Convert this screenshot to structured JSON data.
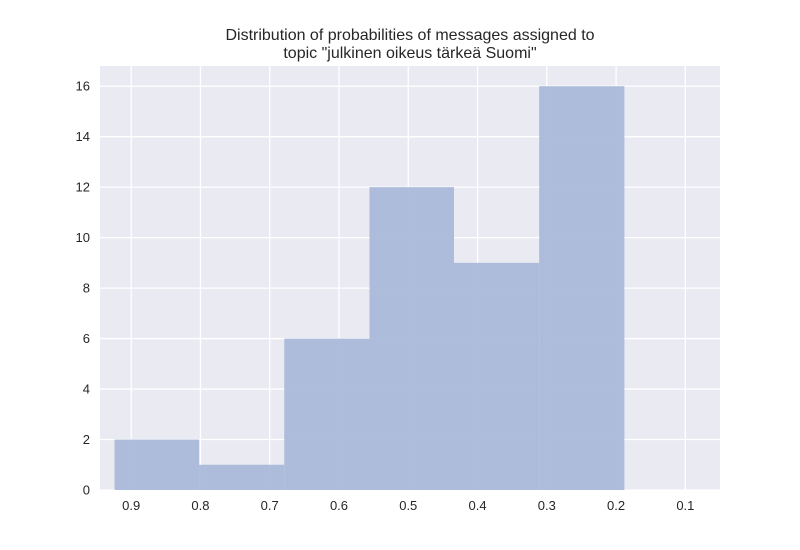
{
  "chart_data": {
    "type": "bar",
    "title_lines": [
      "Distribution of probabilities of messages assigned to",
      "topic \"julkinen oikeus tärkeä Suomi\""
    ],
    "xlabel": "",
    "ylabel": "",
    "x_axis_reversed": true,
    "xlim": [
      0.945,
      0.05
    ],
    "ylim": [
      0,
      16.8
    ],
    "x_ticks": [
      0.9,
      0.8,
      0.7,
      0.6,
      0.5,
      0.4,
      0.3,
      0.2,
      0.1
    ],
    "x_tick_labels": [
      "0.9",
      "0.8",
      "0.7",
      "0.6",
      "0.5",
      "0.4",
      "0.3",
      "0.2",
      "0.1"
    ],
    "y_ticks": [
      0,
      2,
      4,
      6,
      8,
      10,
      12,
      14,
      16
    ],
    "y_tick_labels": [
      "0",
      "2",
      "4",
      "6",
      "8",
      "10",
      "12",
      "14",
      "16"
    ],
    "grid": true,
    "bin_edges": [
      0.924,
      0.802,
      0.679,
      0.556,
      0.434,
      0.311,
      0.188
    ],
    "values": [
      2,
      1,
      6,
      12,
      9,
      16
    ],
    "colors": {
      "bar": "#a9b9d8",
      "background": "#eaeaf2",
      "grid": "#ffffff",
      "text": "#262626"
    }
  }
}
